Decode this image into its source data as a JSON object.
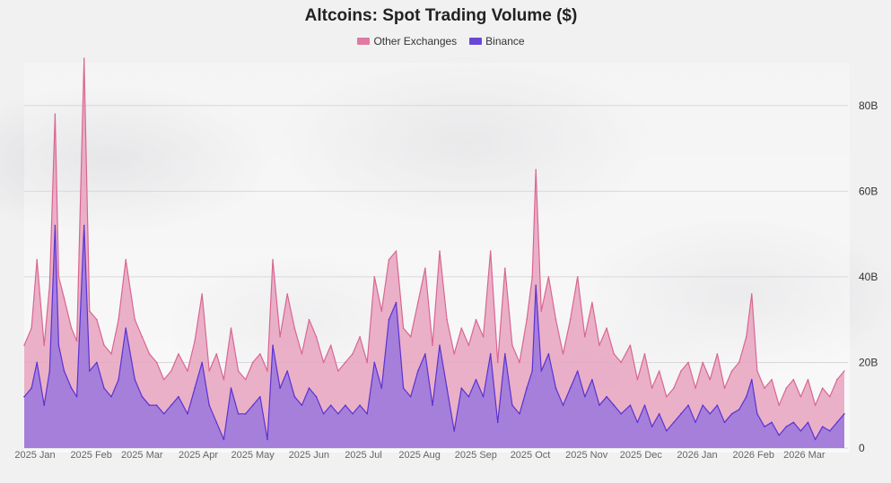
{
  "chart_data": {
    "type": "area",
    "title": "Altcoins: Spot Trading Volume ($)",
    "xlabel": "",
    "ylabel": "",
    "ylim": [
      0,
      90
    ],
    "y_unit": "B",
    "yticks": [
      "0",
      "20B",
      "40B",
      "60B",
      "80B"
    ],
    "ytick_values": [
      0,
      20,
      40,
      60,
      80
    ],
    "x_range": [
      "2025-01-01",
      "2026-03-31"
    ],
    "xtick_labels": [
      "2025 Jan",
      "2025 Feb",
      "2025 Mar",
      "2025 Apr",
      "2025 May",
      "2025 Jun",
      "2025 Jul",
      "2025 Aug",
      "2025 Sep",
      "2025 Oct",
      "2025 Nov",
      "2025 Dec",
      "2026 Jan",
      "2026 Feb",
      "2026 Mar"
    ],
    "xtick_dates": [
      "2025-01-01",
      "2025-02-01",
      "2025-03-01",
      "2025-04-01",
      "2025-05-01",
      "2025-06-01",
      "2025-07-01",
      "2025-08-01",
      "2025-09-01",
      "2025-10-01",
      "2025-11-01",
      "2025-12-01",
      "2026-01-01",
      "2026-02-01",
      "2026-03-01"
    ],
    "stacked": true,
    "grid": true,
    "legend_position": "top-center",
    "series": [
      {
        "name": "Other Exchanges",
        "color": "#e07aa2",
        "points": [
          [
            "2025-01-01",
            24
          ],
          [
            "2025-01-05",
            28
          ],
          [
            "2025-01-08",
            44
          ],
          [
            "2025-01-12",
            24
          ],
          [
            "2025-01-15",
            38
          ],
          [
            "2025-01-18",
            78
          ],
          [
            "2025-01-20",
            40
          ],
          [
            "2025-01-23",
            35
          ],
          [
            "2025-01-27",
            28
          ],
          [
            "2025-01-30",
            25
          ],
          [
            "2025-02-03",
            91
          ],
          [
            "2025-02-06",
            32
          ],
          [
            "2025-02-10",
            30
          ],
          [
            "2025-02-14",
            24
          ],
          [
            "2025-02-18",
            22
          ],
          [
            "2025-02-22",
            30
          ],
          [
            "2025-02-26",
            44
          ],
          [
            "2025-03-03",
            30
          ],
          [
            "2025-03-07",
            26
          ],
          [
            "2025-03-11",
            22
          ],
          [
            "2025-03-15",
            20
          ],
          [
            "2025-03-19",
            16
          ],
          [
            "2025-03-23",
            18
          ],
          [
            "2025-03-27",
            22
          ],
          [
            "2025-04-01",
            18
          ],
          [
            "2025-04-05",
            25
          ],
          [
            "2025-04-09",
            36
          ],
          [
            "2025-04-13",
            18
          ],
          [
            "2025-04-17",
            22
          ],
          [
            "2025-04-21",
            16
          ],
          [
            "2025-04-25",
            28
          ],
          [
            "2025-04-29",
            18
          ],
          [
            "2025-05-03",
            16
          ],
          [
            "2025-05-07",
            20
          ],
          [
            "2025-05-11",
            22
          ],
          [
            "2025-05-15",
            18
          ],
          [
            "2025-05-18",
            44
          ],
          [
            "2025-05-22",
            26
          ],
          [
            "2025-05-26",
            36
          ],
          [
            "2025-05-30",
            28
          ],
          [
            "2025-06-03",
            22
          ],
          [
            "2025-06-07",
            30
          ],
          [
            "2025-06-11",
            26
          ],
          [
            "2025-06-15",
            20
          ],
          [
            "2025-06-19",
            24
          ],
          [
            "2025-06-23",
            18
          ],
          [
            "2025-06-27",
            20
          ],
          [
            "2025-07-01",
            22
          ],
          [
            "2025-07-05",
            26
          ],
          [
            "2025-07-09",
            20
          ],
          [
            "2025-07-13",
            40
          ],
          [
            "2025-07-17",
            32
          ],
          [
            "2025-07-21",
            44
          ],
          [
            "2025-07-25",
            46
          ],
          [
            "2025-07-29",
            28
          ],
          [
            "2025-08-02",
            26
          ],
          [
            "2025-08-06",
            34
          ],
          [
            "2025-08-10",
            42
          ],
          [
            "2025-08-14",
            24
          ],
          [
            "2025-08-18",
            46
          ],
          [
            "2025-08-22",
            30
          ],
          [
            "2025-08-26",
            22
          ],
          [
            "2025-08-30",
            28
          ],
          [
            "2025-09-03",
            24
          ],
          [
            "2025-09-07",
            30
          ],
          [
            "2025-09-11",
            26
          ],
          [
            "2025-09-15",
            46
          ],
          [
            "2025-09-19",
            20
          ],
          [
            "2025-09-23",
            42
          ],
          [
            "2025-09-27",
            24
          ],
          [
            "2025-10-01",
            20
          ],
          [
            "2025-10-05",
            30
          ],
          [
            "2025-10-08",
            40
          ],
          [
            "2025-10-10",
            65
          ],
          [
            "2025-10-13",
            32
          ],
          [
            "2025-10-17",
            40
          ],
          [
            "2025-10-21",
            30
          ],
          [
            "2025-10-25",
            22
          ],
          [
            "2025-10-29",
            30
          ],
          [
            "2025-11-02",
            40
          ],
          [
            "2025-11-06",
            26
          ],
          [
            "2025-11-10",
            34
          ],
          [
            "2025-11-14",
            24
          ],
          [
            "2025-11-18",
            28
          ],
          [
            "2025-11-22",
            22
          ],
          [
            "2025-11-26",
            20
          ],
          [
            "2025-12-01",
            24
          ],
          [
            "2025-12-05",
            16
          ],
          [
            "2025-12-09",
            22
          ],
          [
            "2025-12-13",
            14
          ],
          [
            "2025-12-17",
            18
          ],
          [
            "2025-12-21",
            12
          ],
          [
            "2025-12-25",
            14
          ],
          [
            "2025-12-29",
            18
          ],
          [
            "2026-01-02",
            20
          ],
          [
            "2026-01-06",
            14
          ],
          [
            "2026-01-10",
            20
          ],
          [
            "2026-01-14",
            16
          ],
          [
            "2026-01-18",
            22
          ],
          [
            "2026-01-22",
            14
          ],
          [
            "2026-01-26",
            18
          ],
          [
            "2026-01-30",
            20
          ],
          [
            "2026-02-03",
            26
          ],
          [
            "2026-02-06",
            36
          ],
          [
            "2026-02-09",
            18
          ],
          [
            "2026-02-13",
            14
          ],
          [
            "2026-02-17",
            16
          ],
          [
            "2026-02-21",
            10
          ],
          [
            "2026-02-25",
            14
          ],
          [
            "2026-03-01",
            16
          ],
          [
            "2026-03-05",
            12
          ],
          [
            "2026-03-09",
            16
          ],
          [
            "2026-03-13",
            10
          ],
          [
            "2026-03-17",
            14
          ],
          [
            "2026-03-21",
            12
          ],
          [
            "2026-03-25",
            16
          ],
          [
            "2026-03-29",
            18
          ]
        ]
      },
      {
        "name": "Binance",
        "color": "#6a46d6",
        "points": [
          [
            "2025-01-01",
            12
          ],
          [
            "2025-01-05",
            14
          ],
          [
            "2025-01-08",
            20
          ],
          [
            "2025-01-12",
            10
          ],
          [
            "2025-01-15",
            18
          ],
          [
            "2025-01-18",
            52
          ],
          [
            "2025-01-20",
            24
          ],
          [
            "2025-01-23",
            18
          ],
          [
            "2025-01-27",
            14
          ],
          [
            "2025-01-30",
            12
          ],
          [
            "2025-02-03",
            52
          ],
          [
            "2025-02-06",
            18
          ],
          [
            "2025-02-10",
            20
          ],
          [
            "2025-02-14",
            14
          ],
          [
            "2025-02-18",
            12
          ],
          [
            "2025-02-22",
            16
          ],
          [
            "2025-02-26",
            28
          ],
          [
            "2025-03-03",
            16
          ],
          [
            "2025-03-07",
            12
          ],
          [
            "2025-03-11",
            10
          ],
          [
            "2025-03-15",
            10
          ],
          [
            "2025-03-19",
            8
          ],
          [
            "2025-03-23",
            10
          ],
          [
            "2025-03-27",
            12
          ],
          [
            "2025-04-01",
            8
          ],
          [
            "2025-04-05",
            14
          ],
          [
            "2025-04-09",
            20
          ],
          [
            "2025-04-13",
            10
          ],
          [
            "2025-04-17",
            6
          ],
          [
            "2025-04-21",
            2
          ],
          [
            "2025-04-25",
            14
          ],
          [
            "2025-04-29",
            8
          ],
          [
            "2025-05-03",
            8
          ],
          [
            "2025-05-07",
            10
          ],
          [
            "2025-05-11",
            12
          ],
          [
            "2025-05-15",
            2
          ],
          [
            "2025-05-18",
            24
          ],
          [
            "2025-05-22",
            14
          ],
          [
            "2025-05-26",
            18
          ],
          [
            "2025-05-30",
            12
          ],
          [
            "2025-06-03",
            10
          ],
          [
            "2025-06-07",
            14
          ],
          [
            "2025-06-11",
            12
          ],
          [
            "2025-06-15",
            8
          ],
          [
            "2025-06-19",
            10
          ],
          [
            "2025-06-23",
            8
          ],
          [
            "2025-06-27",
            10
          ],
          [
            "2025-07-01",
            8
          ],
          [
            "2025-07-05",
            10
          ],
          [
            "2025-07-09",
            8
          ],
          [
            "2025-07-13",
            20
          ],
          [
            "2025-07-17",
            14
          ],
          [
            "2025-07-21",
            30
          ],
          [
            "2025-07-25",
            34
          ],
          [
            "2025-07-29",
            14
          ],
          [
            "2025-08-02",
            12
          ],
          [
            "2025-08-06",
            18
          ],
          [
            "2025-08-10",
            22
          ],
          [
            "2025-08-14",
            10
          ],
          [
            "2025-08-18",
            24
          ],
          [
            "2025-08-22",
            14
          ],
          [
            "2025-08-26",
            4
          ],
          [
            "2025-08-30",
            14
          ],
          [
            "2025-09-03",
            12
          ],
          [
            "2025-09-07",
            16
          ],
          [
            "2025-09-11",
            12
          ],
          [
            "2025-09-15",
            22
          ],
          [
            "2025-09-19",
            6
          ],
          [
            "2025-09-23",
            22
          ],
          [
            "2025-09-27",
            10
          ],
          [
            "2025-10-01",
            8
          ],
          [
            "2025-10-05",
            14
          ],
          [
            "2025-10-08",
            18
          ],
          [
            "2025-10-10",
            38
          ],
          [
            "2025-10-13",
            18
          ],
          [
            "2025-10-17",
            22
          ],
          [
            "2025-10-21",
            14
          ],
          [
            "2025-10-25",
            10
          ],
          [
            "2025-10-29",
            14
          ],
          [
            "2025-11-02",
            18
          ],
          [
            "2025-11-06",
            12
          ],
          [
            "2025-11-10",
            16
          ],
          [
            "2025-11-14",
            10
          ],
          [
            "2025-11-18",
            12
          ],
          [
            "2025-11-22",
            10
          ],
          [
            "2025-11-26",
            8
          ],
          [
            "2025-12-01",
            10
          ],
          [
            "2025-12-05",
            6
          ],
          [
            "2025-12-09",
            10
          ],
          [
            "2025-12-13",
            5
          ],
          [
            "2025-12-17",
            8
          ],
          [
            "2025-12-21",
            4
          ],
          [
            "2025-12-25",
            6
          ],
          [
            "2025-12-29",
            8
          ],
          [
            "2026-01-02",
            10
          ],
          [
            "2026-01-06",
            6
          ],
          [
            "2026-01-10",
            10
          ],
          [
            "2026-01-14",
            8
          ],
          [
            "2026-01-18",
            10
          ],
          [
            "2026-01-22",
            6
          ],
          [
            "2026-01-26",
            8
          ],
          [
            "2026-01-30",
            9
          ],
          [
            "2026-02-03",
            12
          ],
          [
            "2026-02-06",
            16
          ],
          [
            "2026-02-09",
            8
          ],
          [
            "2026-02-13",
            5
          ],
          [
            "2026-02-17",
            6
          ],
          [
            "2026-02-21",
            3
          ],
          [
            "2026-02-25",
            5
          ],
          [
            "2026-03-01",
            6
          ],
          [
            "2026-03-05",
            4
          ],
          [
            "2026-03-09",
            6
          ],
          [
            "2026-03-13",
            2
          ],
          [
            "2026-03-17",
            5
          ],
          [
            "2026-03-21",
            4
          ],
          [
            "2026-03-25",
            6
          ],
          [
            "2026-03-29",
            8
          ]
        ]
      }
    ]
  }
}
